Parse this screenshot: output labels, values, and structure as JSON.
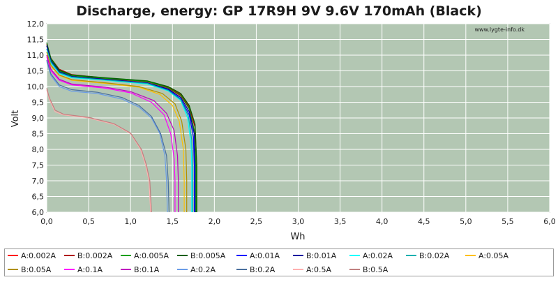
{
  "chart_data": {
    "type": "line",
    "title": "Discharge, energy: GP 17R9H 9V 9.6V 170mAh (Black)",
    "xlabel": "Wh",
    "ylabel": "Volt",
    "watermark": "www.lygte-info.dk",
    "xlim": [
      0,
      6
    ],
    "ylim": [
      6,
      12
    ],
    "x_ticks": [
      "0,0",
      "0,5",
      "1,0",
      "1,5",
      "2,0",
      "2,5",
      "3,0",
      "3,5",
      "4,0",
      "4,5",
      "5,0",
      "5,5",
      "6,0"
    ],
    "y_ticks": [
      "6,0",
      "6,5",
      "7,0",
      "7,5",
      "8,0",
      "8,5",
      "9,0",
      "9,5",
      "10,0",
      "10,5",
      "11,0",
      "11,5",
      "12,0"
    ],
    "grid": true,
    "legend_position": "bottom",
    "plot_background": "#b3c7b3",
    "series": [
      {
        "name": "A:0.002A",
        "color": "#ff0000",
        "points": [
          [
            0,
            11.3
          ],
          [
            0.05,
            10.85
          ],
          [
            0.15,
            10.5
          ],
          [
            0.3,
            10.35
          ],
          [
            0.7,
            10.25
          ],
          [
            1.2,
            10.15
          ],
          [
            1.45,
            9.95
          ],
          [
            1.6,
            9.7
          ],
          [
            1.7,
            9.3
          ],
          [
            1.76,
            8.6
          ],
          [
            1.78,
            7.5
          ],
          [
            1.78,
            6.0
          ]
        ]
      },
      {
        "name": "B:0.002A",
        "color": "#b00000",
        "points": [
          [
            0,
            11.35
          ],
          [
            0.05,
            10.9
          ],
          [
            0.15,
            10.55
          ],
          [
            0.3,
            10.38
          ],
          [
            0.7,
            10.27
          ],
          [
            1.2,
            10.17
          ],
          [
            1.45,
            9.98
          ],
          [
            1.6,
            9.75
          ],
          [
            1.7,
            9.35
          ],
          [
            1.77,
            8.7
          ],
          [
            1.79,
            7.5
          ],
          [
            1.79,
            6.0
          ]
        ]
      },
      {
        "name": "A:0.005A",
        "color": "#00a000",
        "points": [
          [
            0,
            11.3
          ],
          [
            0.05,
            10.85
          ],
          [
            0.15,
            10.5
          ],
          [
            0.3,
            10.35
          ],
          [
            0.7,
            10.26
          ],
          [
            1.2,
            10.16
          ],
          [
            1.45,
            9.96
          ],
          [
            1.6,
            9.72
          ],
          [
            1.7,
            9.3
          ],
          [
            1.76,
            8.6
          ],
          [
            1.78,
            7.5
          ],
          [
            1.78,
            6.0
          ]
        ]
      },
      {
        "name": "B:0.005A",
        "color": "#006000",
        "points": [
          [
            0,
            11.4
          ],
          [
            0.05,
            10.9
          ],
          [
            0.15,
            10.52
          ],
          [
            0.3,
            10.37
          ],
          [
            0.7,
            10.28
          ],
          [
            1.2,
            10.18
          ],
          [
            1.45,
            10.0
          ],
          [
            1.6,
            9.78
          ],
          [
            1.7,
            9.4
          ],
          [
            1.77,
            8.8
          ],
          [
            1.79,
            7.5
          ],
          [
            1.79,
            6.0
          ]
        ]
      },
      {
        "name": "A:0.01A",
        "color": "#0000ff",
        "points": [
          [
            0,
            11.3
          ],
          [
            0.05,
            10.8
          ],
          [
            0.15,
            10.45
          ],
          [
            0.3,
            10.3
          ],
          [
            0.7,
            10.22
          ],
          [
            1.2,
            10.1
          ],
          [
            1.45,
            9.9
          ],
          [
            1.6,
            9.6
          ],
          [
            1.7,
            9.1
          ],
          [
            1.75,
            8.4
          ],
          [
            1.76,
            7.5
          ],
          [
            1.76,
            6.0
          ]
        ]
      },
      {
        "name": "B:0.01A",
        "color": "#0000a0",
        "points": [
          [
            0,
            11.3
          ],
          [
            0.05,
            10.82
          ],
          [
            0.15,
            10.47
          ],
          [
            0.3,
            10.32
          ],
          [
            0.7,
            10.23
          ],
          [
            1.2,
            10.12
          ],
          [
            1.45,
            9.92
          ],
          [
            1.6,
            9.65
          ],
          [
            1.7,
            9.2
          ],
          [
            1.76,
            8.5
          ],
          [
            1.77,
            7.5
          ],
          [
            1.77,
            6.0
          ]
        ]
      },
      {
        "name": "A:0.02A",
        "color": "#00ffff",
        "points": [
          [
            0,
            11.2
          ],
          [
            0.05,
            10.75
          ],
          [
            0.15,
            10.42
          ],
          [
            0.3,
            10.28
          ],
          [
            0.7,
            10.2
          ],
          [
            1.2,
            10.08
          ],
          [
            1.45,
            9.86
          ],
          [
            1.6,
            9.55
          ],
          [
            1.68,
            9.0
          ],
          [
            1.72,
            8.2
          ],
          [
            1.73,
            7.5
          ],
          [
            1.73,
            6.0
          ]
        ]
      },
      {
        "name": "B:0.02A",
        "color": "#00b0b0",
        "points": [
          [
            0,
            11.2
          ],
          [
            0.05,
            10.78
          ],
          [
            0.15,
            10.44
          ],
          [
            0.3,
            10.3
          ],
          [
            0.7,
            10.21
          ],
          [
            1.2,
            10.1
          ],
          [
            1.45,
            9.88
          ],
          [
            1.6,
            9.58
          ],
          [
            1.69,
            9.05
          ],
          [
            1.73,
            8.3
          ],
          [
            1.74,
            7.5
          ],
          [
            1.74,
            6.0
          ]
        ]
      },
      {
        "name": "A:0.05A",
        "color": "#ffc000",
        "points": [
          [
            0,
            11.1
          ],
          [
            0.05,
            10.65
          ],
          [
            0.15,
            10.35
          ],
          [
            0.3,
            10.2
          ],
          [
            0.7,
            10.1
          ],
          [
            1.1,
            9.98
          ],
          [
            1.35,
            9.75
          ],
          [
            1.5,
            9.4
          ],
          [
            1.58,
            8.9
          ],
          [
            1.63,
            8.0
          ],
          [
            1.64,
            7.0
          ],
          [
            1.64,
            6.0
          ]
        ]
      },
      {
        "name": "B:0.05A",
        "color": "#b09000",
        "points": [
          [
            0,
            11.1
          ],
          [
            0.05,
            10.68
          ],
          [
            0.15,
            10.37
          ],
          [
            0.3,
            10.22
          ],
          [
            0.7,
            10.12
          ],
          [
            1.1,
            10.0
          ],
          [
            1.38,
            9.78
          ],
          [
            1.53,
            9.45
          ],
          [
            1.61,
            8.9
          ],
          [
            1.66,
            8.0
          ],
          [
            1.67,
            7.0
          ],
          [
            1.67,
            6.0
          ]
        ]
      },
      {
        "name": "A:0.1A",
        "color": "#ff00ff",
        "points": [
          [
            0,
            10.95
          ],
          [
            0.05,
            10.5
          ],
          [
            0.15,
            10.2
          ],
          [
            0.3,
            10.05
          ],
          [
            0.7,
            9.95
          ],
          [
            1.0,
            9.8
          ],
          [
            1.25,
            9.5
          ],
          [
            1.4,
            9.1
          ],
          [
            1.48,
            8.5
          ],
          [
            1.52,
            7.7
          ],
          [
            1.53,
            7.0
          ],
          [
            1.53,
            6.0
          ]
        ]
      },
      {
        "name": "B:0.1A",
        "color": "#c000c0",
        "points": [
          [
            0,
            11.0
          ],
          [
            0.05,
            10.55
          ],
          [
            0.15,
            10.23
          ],
          [
            0.3,
            10.08
          ],
          [
            0.7,
            9.98
          ],
          [
            1.0,
            9.84
          ],
          [
            1.28,
            9.55
          ],
          [
            1.43,
            9.15
          ],
          [
            1.52,
            8.6
          ],
          [
            1.56,
            7.8
          ],
          [
            1.57,
            7.0
          ],
          [
            1.57,
            6.0
          ]
        ]
      },
      {
        "name": "A:0.2A",
        "color": "#6a9ce8",
        "points": [
          [
            0,
            10.8
          ],
          [
            0.05,
            10.35
          ],
          [
            0.15,
            10.0
          ],
          [
            0.3,
            9.85
          ],
          [
            0.6,
            9.78
          ],
          [
            0.9,
            9.6
          ],
          [
            1.1,
            9.35
          ],
          [
            1.25,
            9.0
          ],
          [
            1.35,
            8.5
          ],
          [
            1.41,
            7.8
          ],
          [
            1.43,
            7.0
          ],
          [
            1.44,
            6.0
          ]
        ]
      },
      {
        "name": "B:0.2A",
        "color": "#4a6f9e",
        "points": [
          [
            0,
            10.85
          ],
          [
            0.05,
            10.4
          ],
          [
            0.15,
            10.05
          ],
          [
            0.3,
            9.9
          ],
          [
            0.6,
            9.82
          ],
          [
            0.9,
            9.65
          ],
          [
            1.1,
            9.4
          ],
          [
            1.25,
            9.05
          ],
          [
            1.36,
            8.5
          ],
          [
            1.43,
            7.8
          ],
          [
            1.45,
            7.0
          ],
          [
            1.46,
            6.0
          ]
        ]
      },
      {
        "name": "A:0.5A",
        "color": "#ffb0b0",
        "points": [
          [
            0,
            9.9
          ],
          [
            0.03,
            9.6
          ],
          [
            0.1,
            9.2
          ],
          [
            0.2,
            9.1
          ],
          [
            0.5,
            9.0
          ],
          [
            0.8,
            8.8
          ],
          [
            1.0,
            8.5
          ],
          [
            1.12,
            8.0
          ],
          [
            1.18,
            7.5
          ],
          [
            1.22,
            7.0
          ],
          [
            1.24,
            6.0
          ]
        ]
      },
      {
        "name": "B:0.5A",
        "color": "#c08080",
        "points": [
          [
            0,
            9.95
          ],
          [
            0.03,
            9.65
          ],
          [
            0.1,
            9.25
          ],
          [
            0.2,
            9.12
          ],
          [
            0.5,
            9.02
          ],
          [
            0.8,
            8.82
          ],
          [
            1.0,
            8.52
          ],
          [
            1.13,
            8.0
          ],
          [
            1.19,
            7.5
          ],
          [
            1.23,
            7.0
          ],
          [
            1.25,
            6.0
          ]
        ]
      }
    ]
  }
}
